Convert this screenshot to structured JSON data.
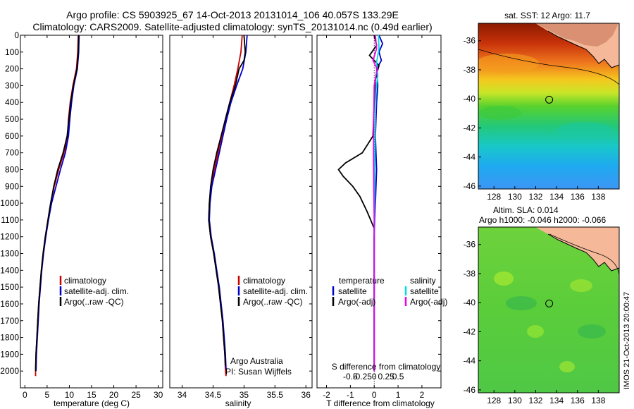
{
  "title": {
    "line1": "Argo profile: CS 5903925_67 14-Oct-2013 20131014_106 40.057S 133.29E",
    "line2": "Climatology: CARS2009. Satellite-adjusted climatology: synTS_20131014.nc (0.49d earlier)"
  },
  "chart_data": [
    {
      "type": "line",
      "panel": "temperature",
      "xlabel": "temperature (deg C)",
      "xlim": [
        -1,
        31
      ],
      "xticks": [
        0,
        5,
        10,
        15,
        20,
        25,
        30
      ],
      "ylim": [
        0,
        2100
      ],
      "yticks": [
        0,
        100,
        200,
        300,
        400,
        500,
        600,
        700,
        800,
        900,
        1000,
        1100,
        1200,
        1300,
        1400,
        1500,
        1600,
        1700,
        1800,
        1900,
        2000
      ],
      "legend": [
        "climatology",
        "satellite-adj. clim.",
        "Argo(..raw -QC)"
      ],
      "series": [
        {
          "name": "climatology",
          "color": "#cc0000",
          "points": [
            [
              12.0,
              0
            ],
            [
              11.9,
              100
            ],
            [
              11.6,
              200
            ],
            [
              10.8,
              300
            ],
            [
              10.2,
              400
            ],
            [
              9.8,
              500
            ],
            [
              9.6,
              600
            ],
            [
              8.8,
              700
            ],
            [
              7.6,
              800
            ],
            [
              6.6,
              900
            ],
            [
              5.8,
              1000
            ],
            [
              5.2,
              1100
            ],
            [
              4.6,
              1200
            ],
            [
              4.1,
              1300
            ],
            [
              3.7,
              1400
            ],
            [
              3.4,
              1500
            ],
            [
              3.1,
              1600
            ],
            [
              2.9,
              1700
            ],
            [
              2.7,
              1800
            ],
            [
              2.5,
              1900
            ],
            [
              2.4,
              2000
            ],
            [
              2.4,
              2030
            ]
          ]
        },
        {
          "name": "satellite-adj. clim.",
          "color": "#0000cc",
          "points": [
            [
              12.2,
              0
            ],
            [
              12.1,
              100
            ],
            [
              11.8,
              200
            ],
            [
              11.0,
              300
            ],
            [
              10.5,
              400
            ],
            [
              10.1,
              500
            ],
            [
              9.8,
              600
            ],
            [
              9.1,
              700
            ],
            [
              8.0,
              800
            ],
            [
              7.0,
              900
            ],
            [
              6.0,
              1000
            ],
            [
              5.3,
              1100
            ],
            [
              4.7,
              1200
            ],
            [
              4.2,
              1300
            ],
            [
              3.8,
              1400
            ],
            [
              3.5,
              1500
            ],
            [
              3.2,
              1600
            ],
            [
              3.0,
              1700
            ],
            [
              2.8,
              1800
            ],
            [
              2.6,
              1900
            ],
            [
              2.5,
              2000
            ]
          ]
        },
        {
          "name": "Argo(..raw -QC)",
          "color": "#000000",
          "points": [
            [
              12.1,
              0
            ],
            [
              12.0,
              100
            ],
            [
              11.7,
              200
            ],
            [
              10.9,
              300
            ],
            [
              10.3,
              400
            ],
            [
              9.9,
              500
            ],
            [
              9.5,
              600
            ],
            [
              8.6,
              700
            ],
            [
              7.4,
              800
            ],
            [
              6.5,
              900
            ],
            [
              5.8,
              1000
            ],
            [
              5.2,
              1100
            ],
            [
              4.6,
              1200
            ],
            [
              4.1,
              1300
            ],
            [
              3.7,
              1400
            ],
            [
              3.4,
              1500
            ],
            [
              3.1,
              1600
            ],
            [
              2.9,
              1700
            ],
            [
              2.7,
              1800
            ],
            [
              2.5,
              1900
            ],
            [
              2.4,
              2000
            ]
          ]
        }
      ]
    },
    {
      "type": "line",
      "panel": "salinity",
      "xlabel": "salinity",
      "xlim": [
        33.8,
        36.1
      ],
      "xticks": [
        34,
        34.5,
        35,
        35.5,
        36
      ],
      "xticklabels": [
        "34",
        "34.5",
        "35",
        "35.5",
        "36"
      ],
      "ylim": [
        0,
        2100
      ],
      "legend": [
        "climatology",
        "satellite-adj. clim.",
        "Argo(..raw -QC)"
      ],
      "annotation": [
        "Argo Australia",
        "PI: Susan Wijffels"
      ],
      "series": [
        {
          "name": "climatology",
          "color": "#cc0000",
          "points": [
            [
              34.97,
              0
            ],
            [
              34.95,
              100
            ],
            [
              34.9,
              200
            ],
            [
              34.84,
              300
            ],
            [
              34.77,
              400
            ],
            [
              34.7,
              500
            ],
            [
              34.64,
              600
            ],
            [
              34.58,
              700
            ],
            [
              34.52,
              800
            ],
            [
              34.47,
              900
            ],
            [
              34.44,
              1000
            ],
            [
              34.43,
              1100
            ],
            [
              34.46,
              1200
            ],
            [
              34.51,
              1300
            ],
            [
              34.55,
              1400
            ],
            [
              34.59,
              1500
            ],
            [
              34.62,
              1600
            ],
            [
              34.65,
              1700
            ],
            [
              34.67,
              1800
            ],
            [
              34.69,
              1900
            ],
            [
              34.7,
              2000
            ],
            [
              34.71,
              2030
            ]
          ]
        },
        {
          "name": "satellite-adj. clim.",
          "color": "#0000cc",
          "points": [
            [
              35.05,
              0
            ],
            [
              35.03,
              100
            ],
            [
              34.98,
              200
            ],
            [
              34.88,
              300
            ],
            [
              34.79,
              400
            ],
            [
              34.72,
              500
            ],
            [
              34.66,
              600
            ],
            [
              34.6,
              700
            ],
            [
              34.54,
              800
            ],
            [
              34.48,
              900
            ],
            [
              34.45,
              1000
            ],
            [
              34.44,
              1100
            ],
            [
              34.47,
              1200
            ],
            [
              34.52,
              1300
            ],
            [
              34.56,
              1400
            ],
            [
              34.6,
              1500
            ],
            [
              34.63,
              1600
            ],
            [
              34.66,
              1700
            ],
            [
              34.68,
              1800
            ],
            [
              34.7,
              1900
            ],
            [
              34.71,
              1990
            ]
          ]
        },
        {
          "name": "Argo(..raw -QC)",
          "color": "#000000",
          "points": [
            [
              35.0,
              0
            ],
            [
              35.02,
              100
            ],
            [
              35.0,
              150
            ],
            [
              34.92,
              200
            ],
            [
              34.86,
              300
            ],
            [
              34.77,
              400
            ],
            [
              34.7,
              500
            ],
            [
              34.63,
              600
            ],
            [
              34.56,
              700
            ],
            [
              34.5,
              800
            ],
            [
              34.46,
              900
            ],
            [
              34.44,
              1000
            ],
            [
              34.43,
              1100
            ],
            [
              34.46,
              1200
            ],
            [
              34.51,
              1300
            ],
            [
              34.55,
              1400
            ],
            [
              34.59,
              1500
            ],
            [
              34.62,
              1600
            ],
            [
              34.65,
              1700
            ],
            [
              34.67,
              1800
            ],
            [
              34.69,
              1900
            ],
            [
              34.7,
              1970
            ]
          ]
        }
      ]
    },
    {
      "type": "line",
      "panel": "difference",
      "xlabel": "T difference from climatology",
      "top_label": "S difference from climatology",
      "xlim": [
        -2.4,
        2.8
      ],
      "xticks": [
        -2,
        -1,
        0,
        1,
        2
      ],
      "top_ticks": [
        -0.5,
        -0.25,
        0,
        0.25,
        0.5
      ],
      "top_ticklabels": [
        "-0.5",
        "-0.25",
        "0",
        "0.25",
        "0.5"
      ],
      "ylim": [
        0,
        2100
      ],
      "legend_left_title": "temperature",
      "legend_right_title": "salinity",
      "legend": [
        "satellite",
        "Argo(-adj)",
        "satellite",
        "Argo(-adj)"
      ],
      "series": [
        {
          "name": "T satellite",
          "color": "#0000cc",
          "points": [
            [
              0.2,
              0
            ],
            [
              0.35,
              50
            ],
            [
              0.2,
              100
            ],
            [
              0.3,
              150
            ],
            [
              0.1,
              200
            ],
            [
              0.15,
              300
            ],
            [
              0.1,
              400
            ],
            [
              0.05,
              600
            ],
            [
              0.1,
              800
            ],
            [
              0.05,
              1000
            ],
            [
              0.0,
              1200
            ],
            [
              0.0,
              2000
            ]
          ]
        },
        {
          "name": "T Argo(-adj)",
          "color": "#000000",
          "points": [
            [
              0.0,
              0
            ],
            [
              0.1,
              60
            ],
            [
              -0.2,
              120
            ],
            [
              0.2,
              180
            ],
            [
              0.05,
              260
            ],
            [
              0.0,
              400
            ],
            [
              -0.05,
              600
            ],
            [
              -0.5,
              700
            ],
            [
              -1.2,
              760
            ],
            [
              -1.5,
              800
            ],
            [
              -1.3,
              840
            ],
            [
              -0.9,
              900
            ],
            [
              -0.6,
              960
            ],
            [
              -0.3,
              1050
            ],
            [
              0.0,
              1150
            ],
            [
              0.0,
              2000
            ]
          ]
        },
        {
          "name": "S satellite",
          "color": "#00dddd",
          "points": [
            [
              0.18,
              0
            ],
            [
              0.2,
              80
            ],
            [
              0.1,
              160
            ],
            [
              0.15,
              240
            ],
            [
              0.08,
              320
            ],
            [
              0.05,
              480
            ],
            [
              0.03,
              700
            ],
            [
              0.02,
              1000
            ],
            [
              0.01,
              1300
            ],
            [
              0.0,
              2000
            ]
          ]
        },
        {
          "name": "S Argo(-adj)",
          "color": "#ee00ee",
          "points": [
            [
              0.05,
              0
            ],
            [
              0.1,
              80
            ],
            [
              -0.05,
              150
            ],
            [
              0.12,
              200
            ],
            [
              0.0,
              300
            ],
            [
              -0.02,
              500
            ],
            [
              -0.03,
              700
            ],
            [
              -0.02,
              900
            ],
            [
              0.0,
              1100
            ],
            [
              0.0,
              2000
            ]
          ]
        }
      ]
    }
  ],
  "sst_map": {
    "title": "sat. SST: 12 Argo: 11.7",
    "yticks": [
      "-36",
      "-38",
      "-40",
      "-42",
      "-44",
      "-46"
    ],
    "xticks": [
      "128",
      "130",
      "132",
      "134",
      "136",
      "138"
    ],
    "marker_lon": 133.29,
    "marker_lat": -40.057
  },
  "sla_map": {
    "title_line1": "Altim. SLA: 0.014",
    "title_line2": "Argo h1000: -0.046 h2000: -0.066",
    "yticks": [
      "-36",
      "-38",
      "-40",
      "-42",
      "-44",
      "-46"
    ],
    "xticks": [
      "128",
      "130",
      "132",
      "134",
      "136",
      "138"
    ],
    "marker_lon": 133.29,
    "marker_lat": -40.057
  },
  "watermark": "IMOS 21-Oct-2013 20:00:47",
  "colors": {
    "climatology": "#cc0000",
    "satellite": "#0000cc",
    "argo": "#000000",
    "sal_satellite": "#00dddd",
    "sal_argo": "#ee00ee",
    "land": "#f5b99a"
  }
}
